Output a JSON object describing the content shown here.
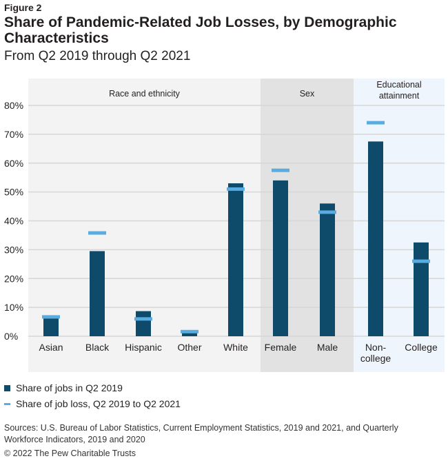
{
  "figure_label": "Figure 2",
  "chart_data": {
    "type": "bar",
    "title": "Share of Pandemic-Related Job Losses, by Demographic Characteristics",
    "subtitle": "From Q2 2019 through Q2 2021",
    "categories": [
      "Asian",
      "Black",
      "Hispanic",
      "Other",
      "White",
      "Female",
      "Male",
      "Non-\ncollege",
      "College"
    ],
    "groups": [
      {
        "label": "Race and ethnicity",
        "categories": [
          0,
          1,
          2,
          3,
          4
        ],
        "color": "#f3f3f3"
      },
      {
        "label": "Sex",
        "categories": [
          5,
          6
        ],
        "color": "#e1e2e1"
      },
      {
        "label": "Educational attainment",
        "categories": [
          7,
          8
        ],
        "color": "#eef5fc"
      }
    ],
    "series": [
      {
        "name": "Share of jobs in Q2 2019",
        "mark": "bar",
        "color": "#0e4a6a",
        "values": [
          7.1,
          29.5,
          8.7,
          1.2,
          53,
          54,
          46,
          67.5,
          32.5
        ]
      },
      {
        "name": "Share of job loss, Q2 2019 to Q2 2021",
        "mark": "line-marker",
        "color": "#5aace0",
        "values": [
          6.7,
          35.8,
          6,
          1.6,
          51,
          57.5,
          43,
          74,
          26
        ]
      }
    ],
    "yticks": [
      "0%",
      "10%",
      "20%",
      "30%",
      "40%",
      "50%",
      "60%",
      "70%",
      "80%"
    ],
    "ylim": [
      0,
      80
    ],
    "grid": true,
    "legend_position": "bottom-left"
  },
  "sources": "Sources: U.S. Bureau of Labor Statistics, Current Employment Statistics, 2019 and 2021, and Quarterly Workforce Indicators, 2019 and 2020",
  "copyright": "© 2022 The Pew Charitable Trusts"
}
